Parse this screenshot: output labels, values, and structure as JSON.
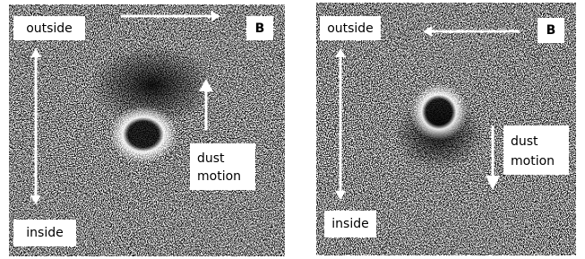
{
  "panels": [
    {
      "outside": "outside",
      "b": "B",
      "inside": "inside",
      "dust_motion": [
        "dust",
        "motion"
      ]
    },
    {
      "outside": "outside",
      "b": "B",
      "inside": "inside",
      "dust_motion": [
        "dust",
        "motion"
      ]
    }
  ]
}
